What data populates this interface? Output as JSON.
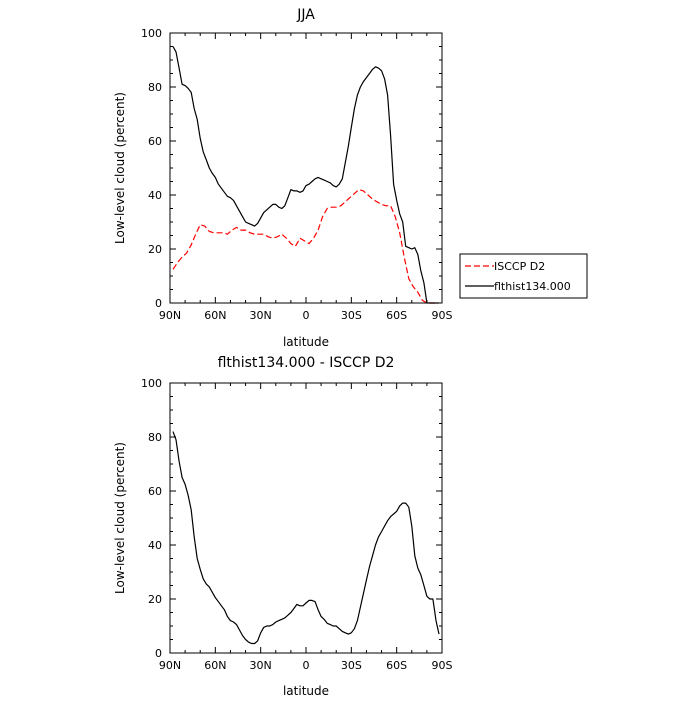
{
  "chart_data": [
    {
      "type": "line",
      "title": "JJA",
      "xlabel": "latitude",
      "ylabel": "Low-level cloud (percent)",
      "xlim": [
        90,
        -90
      ],
      "ylim": [
        0,
        100
      ],
      "xticks": [
        90,
        60,
        30,
        0,
        -30,
        -60,
        -90
      ],
      "xtick_labels": [
        "90N",
        "60N",
        "30N",
        "0",
        "30S",
        "60S",
        "90S"
      ],
      "yticks": [
        0,
        20,
        40,
        60,
        80,
        100
      ],
      "ytick_labels": [
        "0",
        "20",
        "40",
        "60",
        "80",
        "100"
      ],
      "grid": false,
      "legend_position": "right",
      "series": [
        {
          "name": "ISCCP D2",
          "color": "#ff0000",
          "dash": "dashed",
          "x": [
            88,
            85,
            82,
            79,
            76,
            73,
            70,
            67,
            64,
            61,
            58,
            55,
            52,
            49,
            46,
            43,
            40,
            37,
            34,
            31,
            28,
            25,
            22,
            19,
            16,
            13,
            10,
            7,
            4,
            1,
            -2,
            -5,
            -8,
            -11,
            -14,
            -17,
            -20,
            -23,
            -26,
            -29,
            -32,
            -35,
            -38,
            -41,
            -44,
            -47,
            -50,
            -53,
            -56,
            -59,
            -62,
            -65,
            -68,
            -71,
            -74,
            -77,
            -80,
            -83,
            -86
          ],
          "y": [
            12.5,
            15,
            17,
            18.5,
            21.5,
            25.5,
            29,
            28.5,
            26.5,
            26,
            26,
            26,
            25.5,
            27,
            28,
            27,
            27,
            26,
            25.5,
            25.5,
            25.5,
            24.5,
            24,
            24.5,
            25.5,
            24,
            22,
            21,
            24,
            23,
            22,
            24,
            27,
            32,
            35,
            35.5,
            35.5,
            36,
            37.5,
            39,
            40.5,
            42,
            41.5,
            40,
            38.5,
            37.5,
            36.5,
            36,
            36,
            32,
            26,
            17,
            9,
            6,
            4,
            1,
            0,
            0,
            0
          ]
        },
        {
          "name": "flthist134.000",
          "color": "#000000",
          "dash": "solid",
          "x": [
            88,
            86,
            84,
            82,
            80,
            78,
            76,
            74,
            72,
            70,
            68,
            66,
            64,
            62,
            60,
            58,
            56,
            54,
            52,
            50,
            48,
            46,
            44,
            42,
            40,
            38,
            36,
            34,
            32,
            30,
            28,
            26,
            24,
            22,
            20,
            18,
            16,
            14,
            12,
            10,
            8,
            6,
            4,
            2,
            0,
            -2,
            -4,
            -6,
            -8,
            -10,
            -12,
            -14,
            -16,
            -18,
            -20,
            -22,
            -24,
            -26,
            -28,
            -30,
            -32,
            -34,
            -36,
            -38,
            -40,
            -42,
            -44,
            -46,
            -48,
            -50,
            -52,
            -54,
            -56,
            -58,
            -60,
            -62,
            -64,
            -66,
            -68,
            -70,
            -72,
            -74,
            -76,
            -78,
            -80,
            -82,
            -84,
            -86,
            -88
          ],
          "y": [
            95,
            93,
            87,
            81,
            80.5,
            79.5,
            78,
            72,
            68,
            61,
            56,
            53,
            50,
            48,
            46.5,
            44,
            42.5,
            41,
            39.5,
            39,
            38,
            36,
            34,
            32,
            30,
            29.5,
            29,
            28.5,
            29.5,
            31.5,
            33.5,
            34.5,
            35.5,
            36.5,
            36.5,
            35.5,
            35,
            36,
            39,
            42,
            41.5,
            41.5,
            41,
            41.5,
            43.5,
            44,
            45,
            46,
            46.5,
            46,
            45.5,
            45,
            44.5,
            43.5,
            43,
            44,
            46,
            52,
            58,
            65,
            72,
            77,
            80,
            82,
            83.5,
            85,
            86.5,
            87.5,
            87,
            86,
            83,
            77,
            62,
            44,
            38,
            33,
            30,
            21,
            20.5,
            20,
            20.5,
            18,
            12,
            7.5,
            0,
            0,
            0,
            0,
            0
          ]
        }
      ]
    },
    {
      "type": "line",
      "title": "flthist134.000 - ISCCP D2",
      "xlabel": "latitude",
      "ylabel": "Low-level cloud (percent)",
      "xlim": [
        90,
        -90
      ],
      "ylim": [
        0,
        100
      ],
      "xticks": [
        90,
        60,
        30,
        0,
        -30,
        -60,
        -90
      ],
      "xtick_labels": [
        "90N",
        "60N",
        "30N",
        "0",
        "30S",
        "60S",
        "90S"
      ],
      "yticks": [
        0,
        20,
        40,
        60,
        80,
        100
      ],
      "ytick_labels": [
        "0",
        "20",
        "40",
        "60",
        "80",
        "100"
      ],
      "grid": false,
      "series": [
        {
          "color": "#000000",
          "dash": "solid",
          "x": [
            88,
            86,
            84,
            82,
            80,
            78,
            76,
            74,
            72,
            70,
            68,
            66,
            64,
            62,
            60,
            58,
            56,
            54,
            52,
            50,
            48,
            46,
            44,
            42,
            40,
            38,
            36,
            34,
            32,
            30,
            28,
            26,
            24,
            22,
            20,
            18,
            16,
            14,
            12,
            10,
            8,
            6,
            4,
            2,
            0,
            -2,
            -4,
            -6,
            -8,
            -10,
            -12,
            -14,
            -16,
            -18,
            -20,
            -22,
            -24,
            -26,
            -28,
            -30,
            -32,
            -34,
            -36,
            -38,
            -40,
            -42,
            -44,
            -46,
            -48,
            -50,
            -52,
            -54,
            -56,
            -58,
            -60,
            -62,
            -64,
            -66,
            -68,
            -70,
            -72,
            -74,
            -76,
            -78,
            -80,
            -82,
            -84,
            -86,
            -88
          ],
          "y": [
            82,
            79,
            71,
            65,
            62.5,
            58.5,
            53,
            43,
            35,
            31,
            27.5,
            25.5,
            24.5,
            22.5,
            20.5,
            19,
            17.5,
            16,
            13.5,
            12,
            11.5,
            10.5,
            8.5,
            6.5,
            5,
            4,
            3.5,
            3.5,
            4.5,
            7.5,
            9.5,
            10,
            10,
            10.5,
            11.5,
            12,
            12.5,
            13,
            14,
            15,
            16.5,
            18,
            17.5,
            17.5,
            18.5,
            19.5,
            19.5,
            19,
            16,
            13.5,
            12.5,
            11,
            10.5,
            10,
            10,
            9,
            8,
            7.5,
            7,
            7.5,
            9,
            12,
            17,
            22,
            27,
            32,
            36,
            40,
            43,
            45,
            47,
            49,
            50.5,
            51.5,
            52.5,
            54.5,
            55.5,
            55.5,
            54,
            47,
            36,
            31.5,
            29,
            25,
            21,
            20,
            20,
            12,
            7
          ]
        }
      ]
    }
  ]
}
